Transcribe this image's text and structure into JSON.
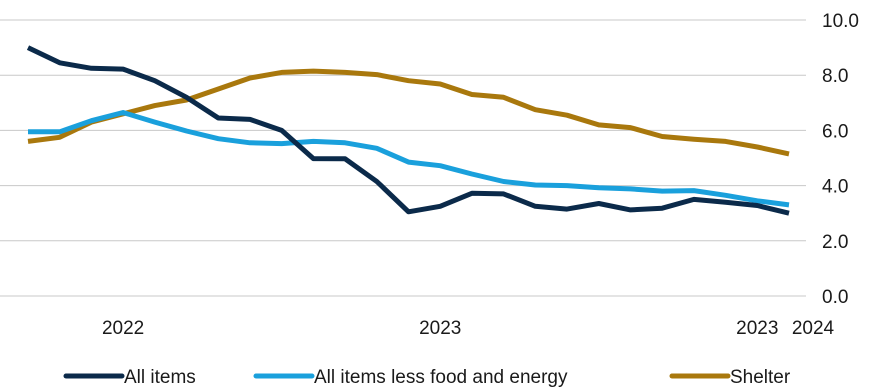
{
  "chart_data": {
    "type": "line",
    "title": "",
    "xlabel": "",
    "ylabel": "",
    "ylim": [
      0,
      10
    ],
    "y_ticks": [
      "0.0",
      "2.0",
      "4.0",
      "6.0",
      "8.0",
      "10.0"
    ],
    "grid": true,
    "legend_position": "bottom",
    "x_ticks": [
      {
        "index": 3,
        "label": "2022"
      },
      {
        "index": 13,
        "label": "2023"
      },
      {
        "index": 23,
        "label": "2023"
      },
      {
        "index": 34,
        "label": "2024"
      }
    ],
    "series": [
      {
        "name": "All items",
        "color": "#0b2a4a",
        "values": [
          9.0,
          8.45,
          8.25,
          8.22,
          7.8,
          7.2,
          6.45,
          6.4,
          6.0,
          4.98,
          4.97,
          4.15,
          3.05,
          3.25,
          3.72,
          3.7,
          3.25,
          3.15,
          3.35,
          3.12,
          3.18,
          3.5,
          3.4,
          3.28,
          3.0
        ]
      },
      {
        "name": "All items less food and energy",
        "color": "#1aa0dc",
        "values": [
          5.95,
          5.95,
          6.35,
          6.65,
          6.3,
          5.98,
          5.7,
          5.55,
          5.52,
          5.6,
          5.55,
          5.35,
          4.85,
          4.72,
          4.42,
          4.15,
          4.02,
          4.0,
          3.92,
          3.88,
          3.8,
          3.82,
          3.65,
          3.45,
          3.3
        ]
      },
      {
        "name": "Shelter",
        "color": "#a9780d",
        "values": [
          5.6,
          5.75,
          6.3,
          6.6,
          6.9,
          7.1,
          7.5,
          7.9,
          8.1,
          8.15,
          8.1,
          8.02,
          7.8,
          7.68,
          7.3,
          7.2,
          6.75,
          6.55,
          6.2,
          6.1,
          5.78,
          5.68,
          5.6,
          5.4,
          5.15
        ]
      }
    ]
  }
}
